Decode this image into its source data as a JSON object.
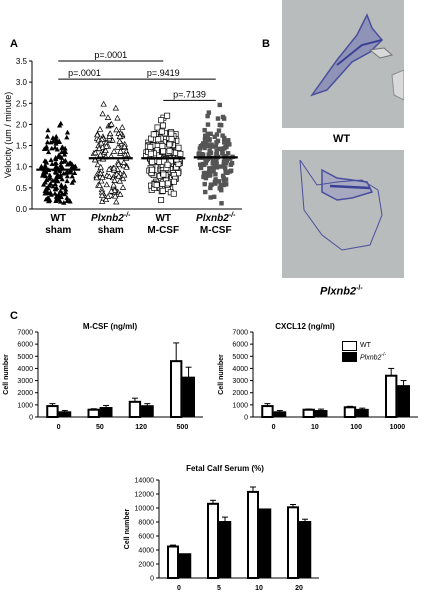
{
  "panels": {
    "a": "A",
    "b": "B",
    "c": "C"
  },
  "scatter": {
    "type": "scatter",
    "ylabel": "Velocity (um / minute)",
    "ylim": [
      0,
      3.5
    ],
    "yticks": [
      "0.0",
      "0.5",
      "1.0",
      "1.5",
      "2.0",
      "2.5",
      "3.0",
      "3.5"
    ],
    "groups": [
      {
        "label1": "WT",
        "label2": "sham",
        "italic": false,
        "mean": 0.93,
        "marker": "filled-triangle",
        "n": 160,
        "sd": 0.42
      },
      {
        "label1": "Plxnb2",
        "sup": "-/-",
        "label2": "sham",
        "italic": true,
        "mean": 1.2,
        "marker": "open-triangle",
        "n": 130,
        "sd": 0.55
      },
      {
        "label1": "WT",
        "label2": "M-CSF",
        "italic": false,
        "mean": 1.2,
        "marker": "open-square",
        "n": 170,
        "sd": 0.42
      },
      {
        "label1": "Plxnb2",
        "sup": "-/-",
        "label2": "M-CSF",
        "italic": true,
        "mean": 1.22,
        "marker": "filled-square",
        "n": 150,
        "sd": 0.45
      }
    ],
    "pvalues": [
      {
        "text": "p=.0001",
        "from": 0,
        "to": 2,
        "y": 3.5
      },
      {
        "text": "p=.0001",
        "from": 0,
        "to": 1,
        "y": 3.07
      },
      {
        "text": "p=.9419",
        "from": 1,
        "to": 3,
        "y": 3.07
      },
      {
        "text": "p=.7139",
        "from": 2,
        "to": 3,
        "y": 2.57
      }
    ]
  },
  "micro": {
    "top_label": "WT",
    "bottom_label": "Plxnb2",
    "bottom_sup": "-/-"
  },
  "bar_charts": [
    {
      "type": "bar",
      "title": "M-CSF (ng/ml)",
      "ylabel": "Cell number",
      "ylim": [
        0,
        7000
      ],
      "yticks": [
        "0",
        "1000",
        "2000",
        "3000",
        "4000",
        "5000",
        "6000",
        "7000"
      ],
      "categories": [
        "0",
        "50",
        "120",
        "500"
      ],
      "series": [
        {
          "name": "WT",
          "values": [
            900,
            600,
            1250,
            4600
          ],
          "errors": [
            200,
            80,
            300,
            1500
          ]
        },
        {
          "name": "Plxnb2-/-",
          "values": [
            450,
            800,
            950,
            3300
          ],
          "errors": [
            80,
            150,
            150,
            800
          ]
        }
      ]
    },
    {
      "type": "bar",
      "title": "CXCL12 (ng/ml)",
      "ylabel": "Cell number",
      "ylim": [
        0,
        7000
      ],
      "yticks": [
        "0",
        "1000",
        "2000",
        "3000",
        "4000",
        "5000",
        "6000",
        "7000"
      ],
      "categories": [
        "0",
        "10",
        "100",
        "1000"
      ],
      "series": [
        {
          "name": "WT",
          "values": [
            900,
            600,
            800,
            3400
          ],
          "errors": [
            200,
            60,
            80,
            600
          ]
        },
        {
          "name": "Plxnb2-/-",
          "values": [
            450,
            550,
            650,
            2600
          ],
          "errors": [
            80,
            100,
            80,
            400
          ]
        }
      ]
    },
    {
      "type": "bar",
      "title": "Fetal Calf Serum (%)",
      "ylabel": "Cell number",
      "ylim": [
        0,
        14000
      ],
      "yticks": [
        "0",
        "2000",
        "4000",
        "6000",
        "8000",
        "10000",
        "12000",
        "14000"
      ],
      "categories": [
        "0",
        "5",
        "10",
        "20"
      ],
      "series": [
        {
          "name": "WT",
          "values": [
            4500,
            10600,
            12300,
            10100
          ],
          "errors": [
            200,
            500,
            700,
            400
          ]
        },
        {
          "name": "Plxnb2-/-",
          "values": [
            3500,
            8100,
            9900,
            8100
          ],
          "errors": [
            0,
            600,
            0,
            300
          ]
        }
      ]
    }
  ],
  "legend": {
    "wt": "WT",
    "ko": "Plxnb2",
    "ko_sup": "-/-"
  },
  "colors": {
    "micro_bg": "#b9bcbd",
    "cell": "#4a4f9c",
    "bar_ko": "#000000",
    "bar_wt": "#ffffff"
  }
}
